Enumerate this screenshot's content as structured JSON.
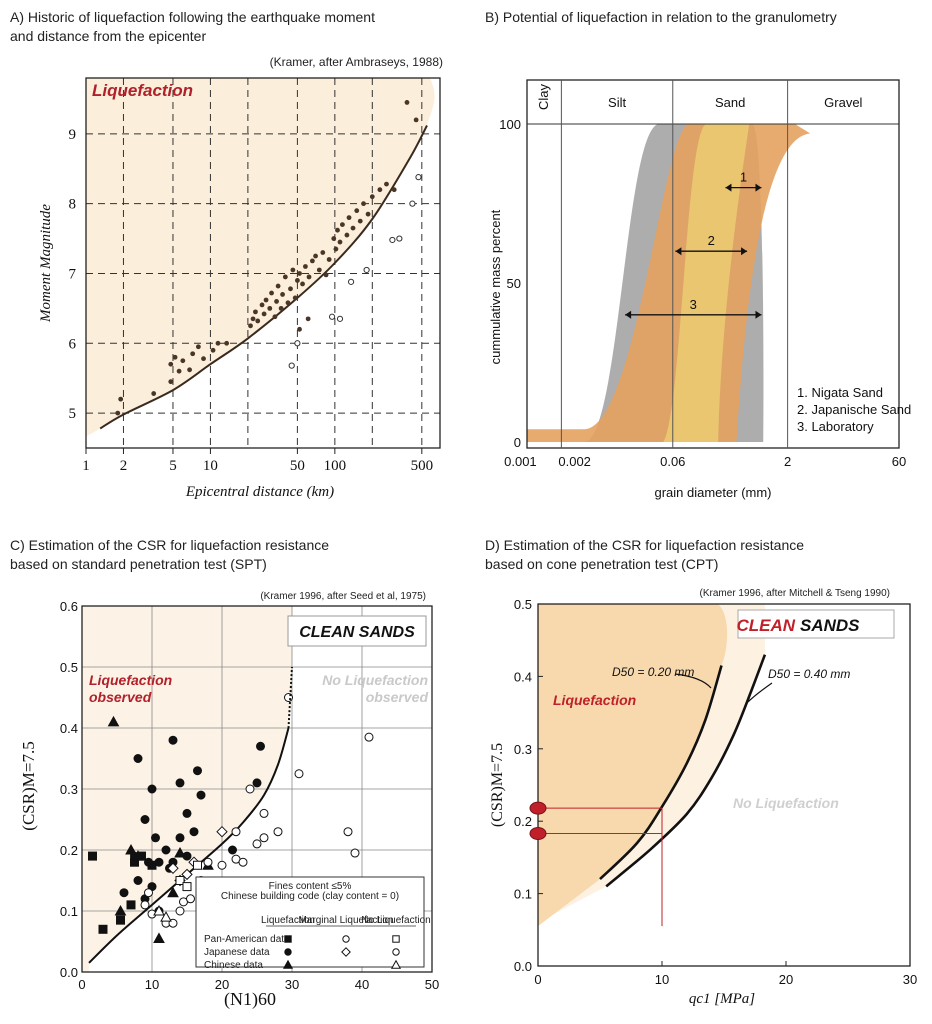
{
  "colors": {
    "zone": "#fbeedb",
    "zone_strong": "#f6d9b1",
    "liq_text": "#b2202a",
    "gray_band": "#a9a9a9",
    "orange_band": "#e4a25f",
    "yellow_band": "#ecd272",
    "marker_red": "#c0202a"
  },
  "chart_data": [
    {
      "id": "A",
      "type": "scatter",
      "title": "A) Historic of liquefaction following the earthquake moment",
      "title2": "and distance from the epicenter",
      "source": "(Kramer, after Ambraseys, 1988)",
      "zone_label": "Liquefaction",
      "xlabel": "Epicentral distance (km)",
      "ylabel": "Moment Magnitude",
      "xscale": "log",
      "xlim": [
        1,
        700
      ],
      "ylim": [
        4.5,
        9.8
      ],
      "xticks": [
        1,
        2,
        5,
        10,
        50,
        100,
        500
      ],
      "xtick_labels": [
        "1",
        "2",
        "5",
        "10",
        "50",
        "100",
        "500"
      ],
      "xgrid": [
        2,
        5,
        10,
        20,
        50,
        100,
        200,
        500
      ],
      "yticks": [
        5,
        6,
        7,
        8,
        9
      ],
      "yticklabels": [
        "5",
        "6",
        "7",
        "8",
        "9"
      ],
      "boundary": [
        [
          1.3,
          4.78
        ],
        [
          2,
          4.98
        ],
        [
          5,
          5.33
        ],
        [
          10,
          5.7
        ],
        [
          20,
          6.07
        ],
        [
          50,
          6.65
        ],
        [
          100,
          7.15
        ],
        [
          200,
          7.78
        ],
        [
          400,
          8.65
        ],
        [
          550,
          9.12
        ]
      ],
      "liquefaction_points": [
        [
          1.8,
          5.0
        ],
        [
          1.9,
          5.2
        ],
        [
          3.5,
          5.28
        ],
        [
          4.8,
          5.45
        ],
        [
          4.8,
          5.7
        ],
        [
          5.2,
          5.8
        ],
        [
          5.6,
          5.6
        ],
        [
          6.0,
          5.75
        ],
        [
          6.8,
          5.62
        ],
        [
          7.2,
          5.85
        ],
        [
          8.0,
          5.95
        ],
        [
          8.8,
          5.78
        ],
        [
          10.5,
          5.9
        ],
        [
          11.5,
          6.0
        ],
        [
          13.5,
          6.0
        ],
        [
          21,
          6.25
        ],
        [
          22,
          6.35
        ],
        [
          23,
          6.45
        ],
        [
          24,
          6.32
        ],
        [
          26,
          6.55
        ],
        [
          27,
          6.42
        ],
        [
          28,
          6.62
        ],
        [
          30,
          6.5
        ],
        [
          31,
          6.72
        ],
        [
          33,
          6.38
        ],
        [
          34,
          6.6
        ],
        [
          35,
          6.82
        ],
        [
          37,
          6.5
        ],
        [
          38,
          6.7
        ],
        [
          40,
          6.95
        ],
        [
          42,
          6.58
        ],
        [
          44,
          6.78
        ],
        [
          46,
          7.05
        ],
        [
          48,
          6.65
        ],
        [
          50,
          6.9
        ],
        [
          52,
          7.0
        ],
        [
          55,
          6.85
        ],
        [
          58,
          7.1
        ],
        [
          62,
          6.95
        ],
        [
          66,
          7.18
        ],
        [
          70,
          7.25
        ],
        [
          75,
          7.05
        ],
        [
          80,
          7.3
        ],
        [
          90,
          7.2
        ],
        [
          98,
          7.5
        ],
        [
          102,
          7.35
        ],
        [
          105,
          7.62
        ],
        [
          110,
          7.45
        ],
        [
          115,
          7.7
        ],
        [
          125,
          7.55
        ],
        [
          130,
          7.8
        ],
        [
          140,
          7.65
        ],
        [
          150,
          7.9
        ],
        [
          160,
          7.75
        ],
        [
          170,
          8.0
        ],
        [
          185,
          7.85
        ],
        [
          200,
          8.1
        ],
        [
          230,
          8.2
        ],
        [
          260,
          8.28
        ],
        [
          300,
          8.2
        ],
        [
          380,
          9.45
        ],
        [
          450,
          9.2
        ],
        [
          52,
          6.2
        ],
        [
          61,
          6.35
        ],
        [
          85,
          6.98
        ]
      ],
      "no_liquefaction_points": [
        [
          45,
          5.68
        ],
        [
          50,
          6.0
        ],
        [
          95,
          6.38
        ],
        [
          110,
          6.35
        ],
        [
          135,
          6.88
        ],
        [
          180,
          7.05
        ],
        [
          290,
          7.48
        ],
        [
          330,
          7.5
        ],
        [
          420,
          8.0
        ],
        [
          470,
          8.38
        ]
      ]
    },
    {
      "id": "B",
      "type": "area",
      "title": "B) Potential of liquefaction in relation to the granulometry",
      "xlabel": "grain diameter (mm)",
      "ylabel": "cummulative mass percent",
      "xscale": "log",
      "xlim": [
        0.0007,
        60
      ],
      "ylim": [
        0,
        100
      ],
      "xticks": [
        0.001,
        0.002,
        0.06,
        2,
        60
      ],
      "xtick_labels": [
        "0.001",
        "0.002",
        "0.06",
        "2",
        "60"
      ],
      "yticks": [
        0,
        50,
        100
      ],
      "yticklabels": [
        "0",
        "50",
        "100"
      ],
      "soil_classes": [
        {
          "label": "Clay",
          "from": 0.0007,
          "to": 0.002
        },
        {
          "label": "Silt",
          "from": 0.002,
          "to": 0.06
        },
        {
          "label": "Sand",
          "from": 0.06,
          "to": 2
        },
        {
          "label": "Gravel",
          "from": 2,
          "to": 60
        }
      ],
      "bands": [
        {
          "name": "Laboratory",
          "color": "gray_band"
        },
        {
          "name": "Japanische Sand",
          "color": "orange_band"
        },
        {
          "name": "Nigata Sand",
          "color": "yellow_band"
        }
      ],
      "ranges": [
        {
          "label": "1",
          "from": 0.3,
          "to": 0.9,
          "y": 80
        },
        {
          "label": "2",
          "from": 0.065,
          "to": 0.58,
          "y": 60
        },
        {
          "label": "3",
          "from": 0.014,
          "to": 0.9,
          "y": 40
        }
      ],
      "legend": [
        "1. Nigata Sand",
        "2. Japanische Sand",
        "3. Laboratory"
      ]
    },
    {
      "id": "C",
      "type": "scatter",
      "title": "C) Estimation of the CSR for liquefaction resistance",
      "title2": "based on standard penetration test (SPT)",
      "source": "(Kramer 1996, after Seed et al, 1975)",
      "badge": "CLEAN SANDS",
      "zone_label_1": "Liquefaction",
      "zone_label_2": "observed",
      "no_zone_label_1": "No Liquefaction",
      "no_zone_label_2": "observed",
      "xlabel": "(N1)60",
      "ylabel": "(CSR)M=7.5",
      "xlim": [
        0,
        50
      ],
      "ylim": [
        0,
        0.6
      ],
      "xticks": [
        0,
        10,
        20,
        30,
        40,
        50
      ],
      "yticks": [
        0.0,
        0.1,
        0.2,
        0.3,
        0.4,
        0.5,
        0.6
      ],
      "yticklabels": [
        "0.0",
        "0.1",
        "0.2",
        "0.3",
        "0.4",
        "0.5",
        "0.6"
      ],
      "boundary": [
        [
          1,
          0.015
        ],
        [
          5,
          0.06
        ],
        [
          10,
          0.11
        ],
        [
          15,
          0.16
        ],
        [
          20,
          0.21
        ],
        [
          23,
          0.245
        ],
        [
          26,
          0.29
        ],
        [
          28,
          0.34
        ],
        [
          29.5,
          0.4
        ],
        [
          30,
          0.5
        ]
      ],
      "legend": {
        "title1": "Fines content ≤5%",
        "title2": "Chinese building code (clay content = 0)",
        "headers": [
          "Liquefaction",
          "Marginal Liquefaction",
          "No Liquefaction"
        ],
        "rows": [
          "Pan-American data",
          "Japanese data",
          "Chinese data"
        ]
      },
      "series": [
        {
          "name": "Pan-American data",
          "marker": "square-filled",
          "points": [
            [
              3,
              0.07
            ],
            [
              5.5,
              0.085
            ],
            [
              7,
              0.11
            ],
            [
              7.5,
              0.18
            ],
            [
              8.5,
              0.19
            ],
            [
              10,
              0.175
            ],
            [
              1.5,
              0.19
            ]
          ]
        },
        {
          "name": "Japanese data",
          "marker": "circle-filled",
          "points": [
            [
              8,
              0.35
            ],
            [
              9,
              0.25
            ],
            [
              10,
              0.3
            ],
            [
              10.5,
              0.22
            ],
            [
              11,
              0.18
            ],
            [
              12,
              0.2
            ],
            [
              13,
              0.38
            ],
            [
              14,
              0.31
            ],
            [
              15,
              0.26
            ],
            [
              16,
              0.23
            ],
            [
              16.5,
              0.33
            ],
            [
              17,
              0.29
            ],
            [
              12.5,
              0.17
            ],
            [
              14,
              0.22
            ],
            [
              15,
              0.19
            ],
            [
              9,
              0.12
            ],
            [
              10,
              0.14
            ],
            [
              11,
              0.1
            ],
            [
              13,
              0.18
            ],
            [
              21.5,
              0.2
            ],
            [
              25,
              0.31
            ],
            [
              25.5,
              0.37
            ],
            [
              7.5,
              0.19
            ],
            [
              8,
              0.15
            ],
            [
              9.5,
              0.18
            ],
            [
              6,
              0.13
            ]
          ]
        },
        {
          "name": "Chinese data",
          "marker": "triangle-filled",
          "points": [
            [
              4.5,
              0.41
            ],
            [
              7,
              0.2
            ],
            [
              8,
              0.19
            ],
            [
              5.5,
              0.1
            ],
            [
              11,
              0.055
            ],
            [
              13,
              0.13
            ],
            [
              14,
              0.195
            ],
            [
              18,
              0.175
            ]
          ]
        },
        {
          "name": "Marginal Liquefaction",
          "marker": "diamond-open",
          "points": [
            [
              14,
              0.15
            ],
            [
              15,
              0.16
            ],
            [
              16,
              0.18
            ],
            [
              13,
              0.17
            ],
            [
              20,
              0.23
            ]
          ]
        },
        {
          "name": "No Liquefaction",
          "marker": "circle-open",
          "points": [
            [
              9,
              0.11
            ],
            [
              9.5,
              0.13
            ],
            [
              10,
              0.095
            ],
            [
              12,
              0.08
            ],
            [
              14,
              0.1
            ],
            [
              14.5,
              0.115
            ],
            [
              15.5,
              0.12
            ],
            [
              17,
              0.15
            ],
            [
              18,
              0.18
            ],
            [
              20,
              0.175
            ],
            [
              22,
              0.185
            ],
            [
              23,
              0.18
            ],
            [
              25,
              0.21
            ],
            [
              26,
              0.22
            ],
            [
              26,
              0.26
            ],
            [
              28,
              0.23
            ],
            [
              29.5,
              0.45
            ],
            [
              31,
              0.325
            ],
            [
              38,
              0.23
            ],
            [
              39,
              0.195
            ],
            [
              41,
              0.385
            ],
            [
              24,
              0.3
            ],
            [
              13,
              0.08
            ],
            [
              22,
              0.23
            ]
          ]
        },
        {
          "name": "No Liquefaction (square)",
          "marker": "square-open",
          "points": [
            [
              14,
              0.15
            ],
            [
              16.5,
              0.175
            ],
            [
              15,
              0.14
            ]
          ]
        },
        {
          "name": "No Liquefaction (triangle)",
          "marker": "triangle-open",
          "points": [
            [
              11,
              0.1
            ],
            [
              12,
              0.09
            ]
          ]
        }
      ]
    },
    {
      "id": "D",
      "type": "line",
      "title": "D) Estimation of the CSR for liquefaction resistance",
      "title2": "based on cone penetration test (CPT)",
      "source": "(Kramer 1996, after Mitchell & Tseng 1990)",
      "badge_1": "CLEAN",
      "badge_2": "SANDS",
      "zone_label": "Liquefaction",
      "no_zone_label": "No Liquefaction",
      "xlabel": "qc1 [MPa]",
      "ylabel": "(CSR)M=7.5",
      "xlim": [
        0,
        30
      ],
      "ylim": [
        0,
        0.5
      ],
      "xticks": [
        0,
        10,
        20,
        30
      ],
      "yticks": [
        0.0,
        0.1,
        0.2,
        0.3,
        0.4,
        0.5
      ],
      "yticklabels": [
        "0.0",
        "0.1",
        "0.2",
        "0.3",
        "0.4",
        "0.5"
      ],
      "series": [
        {
          "name": "D50 = 0.20 mm",
          "points": [
            [
              5,
              0.12
            ],
            [
              8,
              0.17
            ],
            [
              10,
              0.22
            ],
            [
              12,
              0.28
            ],
            [
              13.5,
              0.34
            ],
            [
              14.8,
              0.415
            ]
          ]
        },
        {
          "name": "D50 = 0.40 mm",
          "points": [
            [
              5.5,
              0.11
            ],
            [
              9,
              0.16
            ],
            [
              12,
              0.21
            ],
            [
              14,
              0.26
            ],
            [
              15.8,
              0.32
            ],
            [
              17.2,
              0.38
            ],
            [
              18.3,
              0.43
            ]
          ]
        }
      ],
      "curve_label_1": "D50 = 0.20 mm",
      "curve_label_2": "D50 = 0.40 mm",
      "reading": {
        "x": 10,
        "y1": 0.218,
        "y2": 0.183
      }
    }
  ]
}
